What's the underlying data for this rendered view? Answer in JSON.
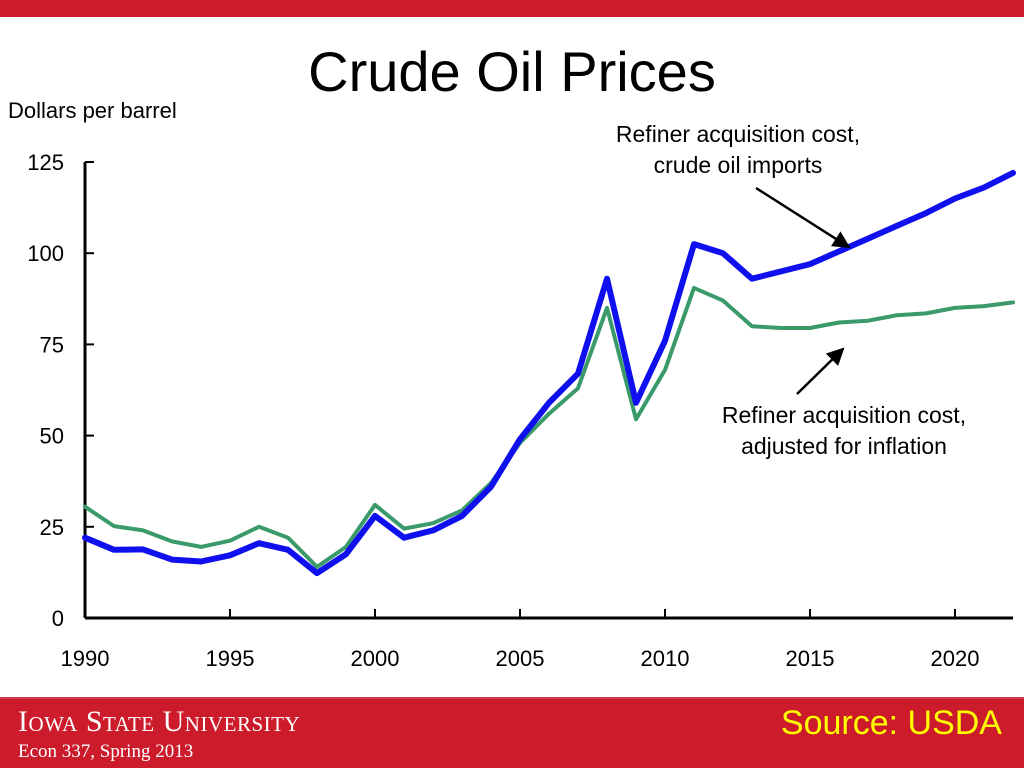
{
  "slide": {
    "title": "Crude Oil Prices"
  },
  "footer": {
    "university": "Iowa State University",
    "course": "Econ 337, Spring 2013",
    "source": "Source: USDA"
  },
  "colors": {
    "brand_red": "#cc1b2b",
    "source_yellow": "#ffff00",
    "nominal_series": "#1010ee",
    "real_series": "#3a9a6a"
  },
  "chart_data": {
    "type": "line",
    "title": "",
    "xlabel": "",
    "ylabel": "Dollars per barrel",
    "xlim": [
      1990,
      2022
    ],
    "ylim": [
      0,
      125
    ],
    "x_ticks": [
      1990,
      1995,
      2000,
      2005,
      2010,
      2015,
      2020
    ],
    "y_ticks": [
      0,
      25,
      50,
      75,
      100,
      125
    ],
    "grid": false,
    "legend": "none",
    "x": [
      1990,
      1991,
      1992,
      1993,
      1994,
      1995,
      1996,
      1997,
      1998,
      1999,
      2000,
      2001,
      2002,
      2003,
      2004,
      2005,
      2006,
      2007,
      2008,
      2009,
      2010,
      2011,
      2012,
      2013,
      2014,
      2015,
      2016,
      2017,
      2018,
      2019,
      2020,
      2021,
      2022
    ],
    "series": [
      {
        "values": [
          22,
          18.7,
          18.8,
          16,
          15.5,
          17.2,
          20.5,
          18.7,
          12.3,
          17.5,
          28,
          22,
          24,
          28,
          36,
          49,
          59,
          67,
          93,
          59,
          76,
          102.5,
          100,
          93,
          95,
          97,
          100.5,
          104,
          107.5,
          111,
          115,
          118,
          122
        ]
      },
      {
        "values": [
          30.5,
          25.2,
          24,
          21,
          19.5,
          21.2,
          25,
          22,
          14,
          19.5,
          31,
          24.5,
          26,
          29.5,
          37,
          48,
          56,
          63,
          85,
          54.5,
          68,
          90.5,
          87,
          80,
          79.5,
          79.5,
          81,
          81.5,
          83,
          83.5,
          85,
          85.5,
          86.5
        ]
      }
    ],
    "annotations": [
      {
        "text_lines": [
          "Refiner acquisition cost,",
          "crude oil imports"
        ],
        "points_to": [
          2016,
          100
        ]
      },
      {
        "text_lines": [
          "Refiner acquisition cost,",
          "adjusted for inflation"
        ],
        "points_to": [
          2015.8,
          76
        ]
      }
    ]
  }
}
